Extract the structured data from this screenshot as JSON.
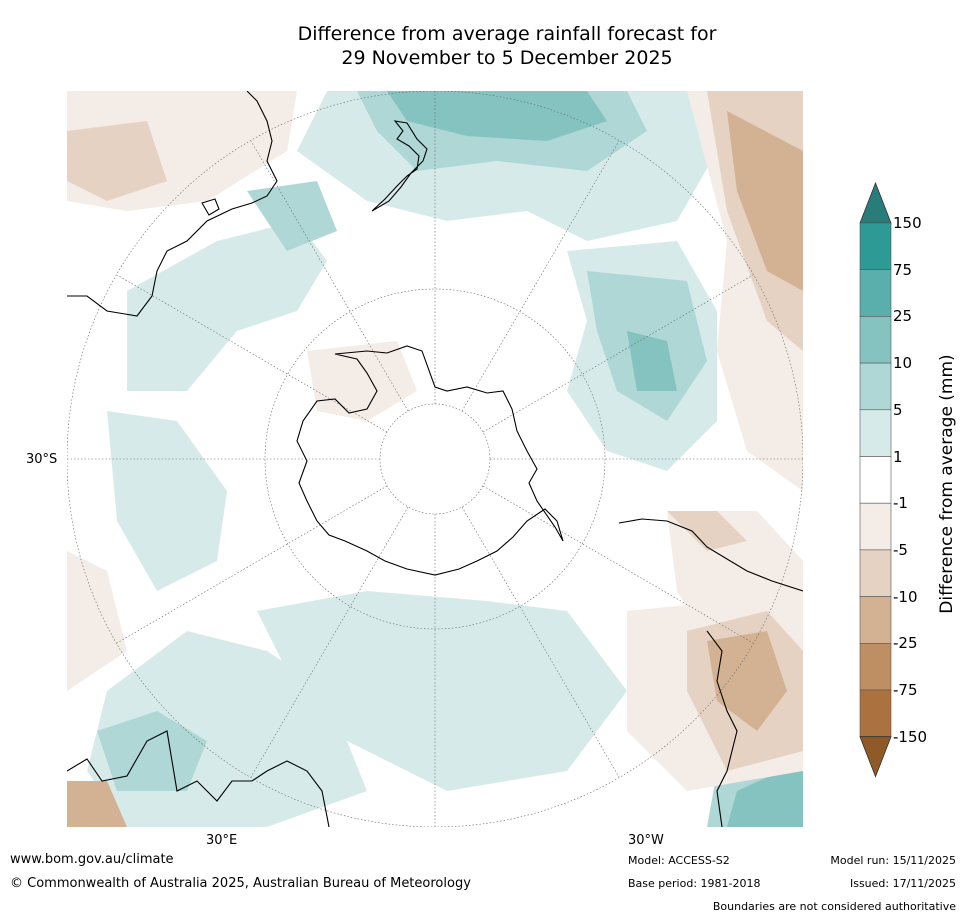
{
  "title": {
    "line1": "Difference from average rainfall forecast for",
    "line2": "29 November to 5 December 2025"
  },
  "map": {
    "projection": "south-polar-stereographic",
    "lat_label": "30°S",
    "lon_labels": {
      "east": "30°E",
      "west": "30°W"
    }
  },
  "colorbar": {
    "label": "Difference from average (mm)",
    "ticks": [
      "150",
      "75",
      "25",
      "10",
      "5",
      "1",
      "-1",
      "-5",
      "-10",
      "-25",
      "-75",
      "-150"
    ],
    "colors": {
      "over": "#287c7a",
      "bands": [
        "#2e9a96",
        "#5aaeab",
        "#84c3c0",
        "#aed7d5",
        "#d6ebe9",
        "#ffffff",
        "#f4ece6",
        "#e5d2c2",
        "#d2b292",
        "#bd8f63",
        "#ab7240"
      ],
      "under": "#8f5a28"
    }
  },
  "footer": {
    "website": "www.bom.gov.au/climate",
    "copyright": "© Commonwealth of Australia 2025, Australian Bureau of Meteorology",
    "model": "Model: ACCESS-S2",
    "base_period": "Base period: 1981-2018",
    "model_run": "Model run: 15/11/2025",
    "issued": "Issued: 17/11/2025",
    "boundaries": "Boundaries are not considered authoritative"
  }
}
